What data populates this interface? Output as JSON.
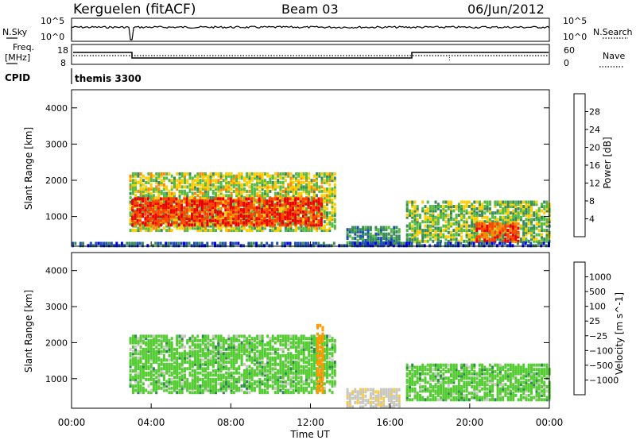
{
  "header": {
    "station": "Kerguelen (fitACF)",
    "beam": "Beam 03",
    "date": "06/Jun/2012"
  },
  "top_panels": {
    "nsky_label": "N.Sky",
    "nsearch_label": "N.Search",
    "nsky_ticks": [
      "10^5",
      "10^0"
    ],
    "nsky_right_ticks": [
      "10^5",
      "10^0"
    ],
    "freq_label_1": "Freq.",
    "freq_label_2": "[MHz]",
    "freq_ticks": [
      "18",
      "8"
    ],
    "nave_label": "Nave",
    "nave_ticks": [
      "60",
      "0"
    ],
    "cpid_label": "CPID",
    "cpid_value": "themis 3300"
  },
  "colors": {
    "power_scale": [
      "#0000ee",
      "#1f4fb4",
      "#3a8a5a",
      "#55bb44",
      "#ffcc00",
      "#ff8800",
      "#ff4400",
      "#ee0000"
    ],
    "velocity_scale": [
      "#2233bb",
      "#1c6a9a",
      "#2c8a4a",
      "#55cc33",
      "#c8c8c0",
      "#ffcc33",
      "#ff9900",
      "#ff5500",
      "#ee1111"
    ]
  },
  "chart_data": [
    {
      "type": "heatmap",
      "panel": "power",
      "ylabel": "Slant Range [km]",
      "yticks": [
        1000,
        2000,
        3000,
        4000
      ],
      "ylim": [
        180,
        4500
      ],
      "xlim": [
        0,
        24
      ],
      "xtick_labels": [
        "00:00",
        "04:00",
        "08:00",
        "12:00",
        "16:00",
        "20:00",
        "00:00"
      ],
      "colorbar": {
        "label": "Power [dB]",
        "ticks": [
          "28",
          "24",
          "20",
          "16",
          "12",
          "8",
          "4"
        ],
        "range": [
          0,
          32
        ]
      },
      "regions": [
        {
          "t_start": 2.9,
          "t_end": 13.3,
          "r_low": 600,
          "r_high": 2200,
          "dominant_power_db": 16
        },
        {
          "t_start": 3.0,
          "t_end": 12.6,
          "r_low": 750,
          "r_high": 1500,
          "dominant_power_db": 28
        },
        {
          "t_start": 16.8,
          "t_end": 24.0,
          "r_low": 300,
          "r_high": 1400,
          "dominant_power_db": 14
        },
        {
          "t_start": 20.3,
          "t_end": 22.5,
          "r_low": 300,
          "r_high": 800,
          "dominant_power_db": 26
        },
        {
          "t_start": 13.8,
          "t_end": 16.5,
          "r_low": 200,
          "r_high": 700,
          "dominant_power_db": 10
        },
        {
          "t_start": 0.0,
          "t_end": 24.0,
          "r_low": 180,
          "r_high": 300,
          "dominant_power_db": 6
        }
      ]
    },
    {
      "type": "heatmap",
      "panel": "velocity",
      "ylabel": "Slant Range [km]",
      "yticks": [
        1000,
        2000,
        3000,
        4000
      ],
      "ylim": [
        180,
        4500
      ],
      "xlim": [
        0,
        24
      ],
      "xlabel": "Time UT",
      "xtick_labels": [
        "00:00",
        "04:00",
        "08:00",
        "12:00",
        "16:00",
        "20:00",
        "00:00"
      ],
      "colorbar": {
        "label": "Velocity [m s^-1]",
        "ticks": [
          "1000",
          "500",
          "100",
          "25",
          "−25",
          "−100",
          "−500",
          "−1000"
        ],
        "range": [
          -1000,
          1000
        ]
      },
      "regions": [
        {
          "t_start": 2.9,
          "t_end": 13.3,
          "r_low": 600,
          "r_high": 2200,
          "dominant_velocity": 0
        },
        {
          "t_start": 16.8,
          "t_end": 24.0,
          "r_low": 400,
          "r_high": 1400,
          "dominant_velocity": 0
        },
        {
          "t_start": 12.3,
          "t_end": 12.6,
          "r_low": 600,
          "r_high": 2500,
          "dominant_velocity": -400
        },
        {
          "t_start": 13.8,
          "t_end": 16.5,
          "r_low": 200,
          "r_high": 700,
          "dominant_velocity": -80
        }
      ]
    }
  ]
}
